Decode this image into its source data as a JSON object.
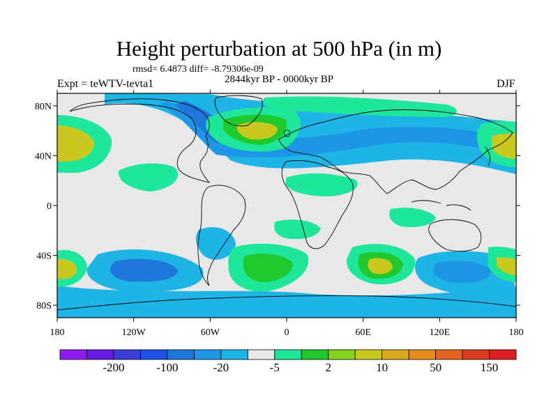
{
  "title": "Height perturbation at 500 hPa (in m)",
  "stats_line": "rmsd= 6.4873 diff= -8.79306e-09",
  "period": "2844kyr BP - 0000kyr BP",
  "left_label": "Expt = teWTV-tevta1",
  "right_label": "DJF",
  "lat_ticks": [
    {
      "label": "80N",
      "lat": 80
    },
    {
      "label": "40N",
      "lat": 40
    },
    {
      "label": "0",
      "lat": 0
    },
    {
      "label": "40S",
      "lat": -40
    },
    {
      "label": "80S",
      "lat": -80
    }
  ],
  "lon_ticks": [
    {
      "label": "180",
      "lon": -180
    },
    {
      "label": "120W",
      "lon": -120
    },
    {
      "label": "60W",
      "lon": -60
    },
    {
      "label": "0",
      "lon": 0
    },
    {
      "label": "60E",
      "lon": 60
    },
    {
      "label": "120E",
      "lon": 120
    },
    {
      "label": "180",
      "lon": 180
    }
  ],
  "colorbar": {
    "colors": [
      "#8c1cf0",
      "#6a1ae8",
      "#3c3cd8",
      "#1e50e6",
      "#1e78dc",
      "#1e96e6",
      "#1eb4e6",
      "#e8e8e8",
      "#1ee69b",
      "#1ec82d",
      "#82d21e",
      "#c8c81e",
      "#dcaa1e",
      "#e68c1e",
      "#e6641e",
      "#dc3c1e",
      "#dc1e1e"
    ],
    "labels": [
      {
        "text": "-200",
        "boundary": 2
      },
      {
        "text": "-100",
        "boundary": 4
      },
      {
        "text": "-20",
        "boundary": 6
      },
      {
        "text": "-5",
        "boundary": 8
      },
      {
        "text": "2",
        "boundary": 10
      },
      {
        "text": "10",
        "boundary": 12
      },
      {
        "text": "50",
        "boundary": 14
      },
      {
        "text": "150",
        "boundary": 16
      }
    ]
  },
  "map_colors": {
    "ocean_bg": "#e8e8e8",
    "neg_light": "#1eb4e6",
    "neg_mid": "#1e96e6",
    "neg_dark": "#1e78dc",
    "pos_light": "#1ee69b",
    "pos_mid": "#1ec82d",
    "pos_high": "#c8c81e",
    "coast": "#000000"
  }
}
